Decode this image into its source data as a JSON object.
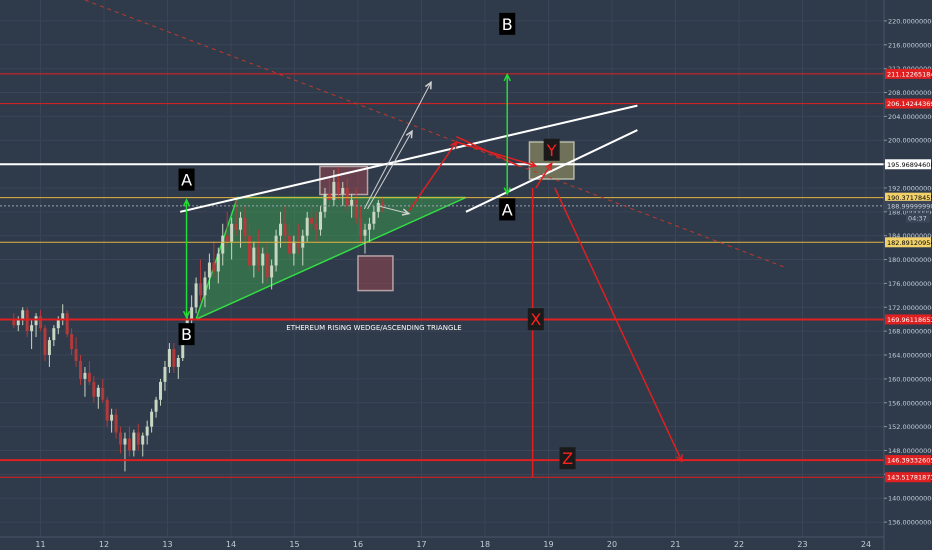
{
  "chart_data": {
    "type": "candlestick",
    "title": "ETHEREUM RISING WEDGE/ASCENDING TRIANGLE",
    "x_ticks": [
      "11",
      "12",
      "13",
      "14",
      "15",
      "16",
      "17",
      "18",
      "19",
      "20",
      "21",
      "22",
      "23",
      "24"
    ],
    "ylim": [
      133.5,
      223.5
    ],
    "y_ticks": [
      "220.00000000",
      "216.00000000",
      "212.00000000",
      "208.00000000",
      "204.00000000",
      "200.00000000",
      "196.00000000",
      "192.00000000",
      "188.00000000",
      "184.00000000",
      "180.00000000",
      "176.00000000",
      "172.00000000",
      "168.00000000",
      "164.00000000",
      "160.00000000",
      "156.00000000",
      "152.00000000",
      "148.00000000",
      "144.00000000",
      "140.00000000",
      "136.00000000"
    ],
    "price_labels": [
      {
        "value": 211.12265184,
        "text": "211.12265184",
        "style": "red"
      },
      {
        "value": 206.14244369,
        "text": "206.14244369",
        "style": "red"
      },
      {
        "value": 195.96894608,
        "text": "195.96894608",
        "style": "white"
      },
      {
        "value": 190.37178455,
        "text": "190.37178455",
        "style": "yellow"
      },
      {
        "value": 188.9999999,
        "text": "188.99999990",
        "style": "dark"
      },
      {
        "value": 187.0,
        "text": "04:37",
        "style": "dark"
      },
      {
        "value": 182.89120954,
        "text": "182.89120954",
        "style": "yellow"
      },
      {
        "value": 169.96118653,
        "text": "169.96118653",
        "style": "red"
      },
      {
        "value": 146.39332605,
        "text": "146.39332605",
        "style": "red"
      },
      {
        "value": 143.51781873,
        "text": "143.51781873",
        "style": "red"
      }
    ],
    "markers": [
      {
        "text": "A",
        "x": 13.3,
        "y": 193.4,
        "style": "dark"
      },
      {
        "text": "A",
        "x": 18.35,
        "y": 188.4,
        "style": "dark"
      },
      {
        "text": "B",
        "x": 13.3,
        "y": 167.5,
        "style": "dark"
      },
      {
        "text": "B",
        "x": 18.35,
        "y": 219.5,
        "style": "dark"
      },
      {
        "text": "X",
        "x": 18.8,
        "y": 170.0,
        "style": "dark-red"
      },
      {
        "text": "Y",
        "x": 19.05,
        "y": 198.4,
        "style": "dark-red"
      },
      {
        "text": "Z",
        "x": 19.3,
        "y": 146.7,
        "style": "dark-red"
      }
    ],
    "candles": [
      [
        10.58,
        170,
        171,
        168.5,
        169
      ],
      [
        10.65,
        169,
        170.5,
        168,
        170
      ],
      [
        10.72,
        170,
        172,
        169,
        171.5
      ],
      [
        10.79,
        171.5,
        172,
        167,
        168
      ],
      [
        10.86,
        168,
        170,
        165,
        169
      ],
      [
        10.93,
        169,
        171,
        167,
        170.5
      ],
      [
        11.0,
        170.5,
        171.5,
        168,
        168.5
      ],
      [
        11.07,
        168.5,
        169,
        163,
        164
      ],
      [
        11.14,
        164,
        167,
        162,
        166.5
      ],
      [
        11.21,
        166.5,
        169,
        165.5,
        168.5
      ],
      [
        11.28,
        168.5,
        170.5,
        167.5,
        170
      ],
      [
        11.35,
        170,
        172.5,
        169,
        171
      ],
      [
        11.42,
        171,
        171.5,
        167,
        167.5
      ],
      [
        11.49,
        167.5,
        168.5,
        164,
        165
      ],
      [
        11.56,
        165,
        167,
        162,
        163
      ],
      [
        11.63,
        163,
        164,
        159,
        160
      ],
      [
        11.7,
        160,
        162,
        157,
        161
      ],
      [
        11.77,
        161,
        163,
        159,
        159.5
      ],
      [
        11.84,
        159.5,
        160.5,
        156,
        157
      ],
      [
        11.91,
        157,
        159,
        155,
        158.5
      ],
      [
        11.98,
        158.5,
        160,
        156,
        156.5
      ],
      [
        12.05,
        156.5,
        157,
        152,
        153
      ],
      [
        12.12,
        153,
        155,
        151,
        154
      ],
      [
        12.19,
        154,
        155,
        150,
        151
      ],
      [
        12.26,
        151,
        152,
        147.5,
        149
      ],
      [
        12.33,
        149,
        151,
        144.5,
        150
      ],
      [
        12.4,
        150,
        152,
        147,
        148
      ],
      [
        12.47,
        148,
        151.5,
        147,
        151
      ],
      [
        12.54,
        151,
        152.5,
        148,
        149
      ],
      [
        12.61,
        149,
        151,
        147,
        150.5
      ],
      [
        12.68,
        150.5,
        153,
        149,
        152
      ],
      [
        12.75,
        152,
        155,
        151,
        154.5
      ],
      [
        12.82,
        154.5,
        157,
        153.5,
        156.5
      ],
      [
        12.89,
        156.5,
        160,
        155.5,
        159.5
      ],
      [
        12.96,
        159.5,
        163,
        158,
        162
      ],
      [
        13.03,
        162,
        166,
        161,
        165
      ],
      [
        13.1,
        165,
        166,
        161,
        162
      ],
      [
        13.17,
        162,
        164,
        160,
        163.5
      ],
      [
        13.24,
        163.5,
        169,
        163,
        168
      ],
      [
        13.31,
        168,
        171,
        166,
        170
      ],
      [
        13.38,
        170,
        174,
        169,
        172
      ],
      [
        13.45,
        172,
        177,
        171,
        176
      ],
      [
        13.52,
        176,
        180,
        173,
        174
      ],
      [
        13.59,
        174,
        178,
        172,
        177
      ],
      [
        13.66,
        177,
        181,
        175,
        179.5
      ],
      [
        13.73,
        179.5,
        183,
        177,
        178
      ],
      [
        13.8,
        178,
        182,
        176,
        181
      ],
      [
        13.87,
        181,
        186,
        179,
        184
      ],
      [
        13.94,
        184,
        188,
        182,
        183
      ],
      [
        14.01,
        183,
        187,
        180,
        186
      ],
      [
        14.08,
        186,
        190,
        184,
        185
      ],
      [
        14.15,
        185,
        188,
        182,
        187
      ],
      [
        14.22,
        187,
        189,
        183,
        184
      ],
      [
        14.29,
        184,
        186,
        178,
        179
      ],
      [
        14.36,
        179,
        183,
        177,
        182
      ],
      [
        14.43,
        182,
        185,
        178,
        179
      ],
      [
        14.5,
        179,
        182,
        176,
        181
      ],
      [
        14.57,
        181,
        183,
        176,
        177
      ],
      [
        14.64,
        177,
        180,
        175,
        179
      ],
      [
        14.71,
        179,
        185,
        178,
        184
      ],
      [
        14.78,
        184,
        188,
        182,
        186
      ],
      [
        14.85,
        186,
        189,
        183,
        184
      ],
      [
        14.92,
        184,
        186,
        180,
        181
      ],
      [
        14.99,
        181,
        184,
        179,
        183
      ],
      [
        15.06,
        183,
        186,
        181,
        182
      ],
      [
        15.13,
        182,
        185,
        179,
        184
      ],
      [
        15.2,
        184,
        188,
        183,
        187
      ],
      [
        15.27,
        187,
        189,
        185,
        186
      ],
      [
        15.34,
        186,
        188,
        183,
        185
      ],
      [
        15.41,
        185,
        189,
        184,
        188
      ],
      [
        15.48,
        188,
        192,
        187,
        191
      ],
      [
        15.55,
        191,
        194,
        189,
        190
      ],
      [
        15.62,
        190,
        195,
        189,
        193
      ],
      [
        15.69,
        193,
        195.5,
        190,
        191
      ],
      [
        15.76,
        191,
        193,
        189,
        192
      ],
      [
        15.83,
        192,
        193.5,
        188,
        189
      ],
      [
        15.9,
        189,
        191,
        187,
        190
      ],
      [
        15.97,
        190,
        192,
        186,
        187
      ],
      [
        16.04,
        187,
        189,
        183,
        184
      ],
      [
        16.11,
        184,
        186,
        181,
        185
      ],
      [
        16.18,
        185,
        187,
        183,
        186
      ],
      [
        16.25,
        186,
        189,
        185,
        188
      ],
      [
        16.32,
        188,
        190,
        187,
        189.5
      ],
      [
        16.39,
        189.5,
        190.5,
        188,
        189
      ]
    ],
    "lines": [
      {
        "name": "resistance-line",
        "kind": "hline",
        "y": 211.12265184,
        "color": "#e02020",
        "width": 1
      },
      {
        "name": "resistance-line",
        "kind": "hline",
        "y": 206.14244369,
        "color": "#e02020",
        "width": 1
      },
      {
        "name": "level-line",
        "kind": "hline",
        "y": 195.96894608,
        "color": "#ffffff",
        "width": 2
      },
      {
        "name": "level-line",
        "kind": "hline",
        "y": 190.37178455,
        "color": "#e3b341",
        "width": 1
      },
      {
        "name": "current-price-line",
        "kind": "hline",
        "y": 188.9999999,
        "color": "#9aa4b2",
        "width": 1,
        "dash": "2,2"
      },
      {
        "name": "level-line",
        "kind": "hline",
        "y": 182.89120954,
        "color": "#e3b341",
        "width": 1
      },
      {
        "name": "support-line",
        "kind": "hline",
        "y": 169.96118653,
        "color": "#e02020",
        "width": 2
      },
      {
        "name": "support-line",
        "kind": "hline",
        "y": 146.39332605,
        "color": "#e02020",
        "width": 2
      },
      {
        "name": "support-line",
        "kind": "hline",
        "y": 143.51781873,
        "color": "#e02020",
        "width": 1
      },
      {
        "name": "wedge-upper-line",
        "kind": "seg",
        "x1": 13.2,
        "y1": 188.0,
        "x2": 20.4,
        "y2": 205.8,
        "color": "#ffffff",
        "width": 2
      },
      {
        "name": "wedge-lower-line",
        "kind": "seg",
        "x1": 17.7,
        "y1": 188.0,
        "x2": 20.4,
        "y2": 201.7,
        "color": "#ffffff",
        "width": 2
      },
      {
        "name": "downtrend-line",
        "kind": "seg",
        "x1": 11.7,
        "y1": 223.5,
        "x2": 22.7,
        "y2": 178.8,
        "color": "#c0392b",
        "width": 1,
        "dash": "4,4"
      },
      {
        "name": "projection-arrow",
        "kind": "arrow",
        "x1": 16.8,
        "y1": 188.1,
        "x2": 17.55,
        "y2": 199.7,
        "color": "#e02020",
        "width": 1.5
      },
      {
        "name": "projection-arrow",
        "kind": "arrow",
        "x1": 17.55,
        "y1": 199.7,
        "x2": 18.8,
        "y2": 195.7,
        "color": "#e02020",
        "width": 1.5
      },
      {
        "name": "projection-arrow",
        "kind": "seg",
        "x1": 17.55,
        "y1": 200.6,
        "x2": 18.55,
        "y2": 195.6,
        "color": "#e02020",
        "width": 1.5
      },
      {
        "name": "projection-arrow",
        "kind": "arrow",
        "x1": 18.8,
        "y1": 192.0,
        "x2": 19.05,
        "y2": 196.1,
        "color": "#e02020",
        "width": 1.5
      },
      {
        "name": "target-arrow",
        "kind": "arrow",
        "x1": 19.1,
        "y1": 192.0,
        "x2": 21.1,
        "y2": 146.2,
        "color": "#e02020",
        "width": 1.5
      },
      {
        "name": "measure-line",
        "kind": "seg",
        "x1": 18.75,
        "y1": 192.0,
        "x2": 18.75,
        "y2": 143.5,
        "color": "#e02020",
        "width": 1.5
      },
      {
        "name": "breakout-arrow",
        "kind": "arrow",
        "x1": 16.15,
        "y1": 188.5,
        "x2": 16.85,
        "y2": 201.5,
        "color": "#d0d0d0",
        "width": 1
      },
      {
        "name": "breakout-arrow",
        "kind": "arrow",
        "x1": 16.1,
        "y1": 188.5,
        "x2": 17.15,
        "y2": 209.7,
        "color": "#d0d0d0",
        "width": 1
      },
      {
        "name": "breakout-arrow",
        "kind": "arrow",
        "x1": 16.35,
        "y1": 188.9,
        "x2": 16.8,
        "y2": 187.7,
        "color": "#d0d0d0",
        "width": 1
      },
      {
        "name": "measured-move-arrow",
        "kind": "darrow",
        "x1": 13.3,
        "y1": 190.0,
        "x2": 13.3,
        "y2": 170.3,
        "color": "#22dd33",
        "width": 1.5
      },
      {
        "name": "measured-move-arrow",
        "kind": "darrow",
        "x1": 18.35,
        "y1": 191.0,
        "x2": 18.35,
        "y2": 211.0,
        "color": "#22dd33",
        "width": 1.5
      }
    ],
    "triangle": [
      [
        13.45,
        170.0
      ],
      [
        14.1,
        190.4
      ],
      [
        17.7,
        190.4
      ]
    ],
    "boxes": [
      {
        "name": "highlight-box",
        "x1": 15.4,
        "y1": 195.6,
        "x2": 16.15,
        "y2": 190.9,
        "fill": "rgba(150,70,80,0.55)",
        "stroke": "#b7a3a5"
      },
      {
        "name": "highlight-box",
        "x1": 16.0,
        "y1": 180.6,
        "x2": 16.55,
        "y2": 174.8,
        "fill": "rgba(150,70,80,0.55)",
        "stroke": "#b7a3a5"
      },
      {
        "name": "target-zone-box",
        "x1": 18.7,
        "y1": 199.7,
        "x2": 19.4,
        "y2": 193.5,
        "fill": "rgba(155,150,100,0.6)",
        "stroke": "#b8b8a8"
      }
    ]
  }
}
